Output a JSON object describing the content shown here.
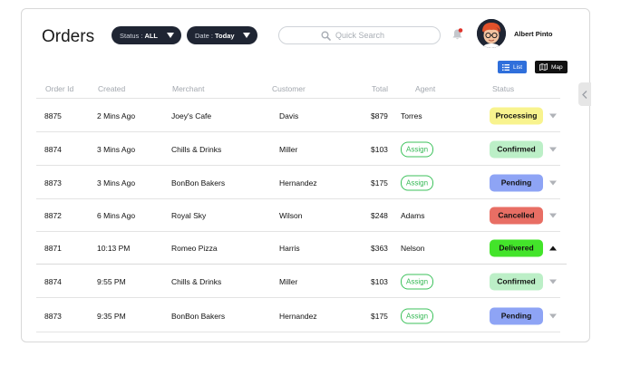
{
  "header": {
    "title": "Orders",
    "status_filter": {
      "label": "Status :",
      "value": "ALL"
    },
    "date_filter": {
      "label": "Date :",
      "value": "Today"
    },
    "search": {
      "placeholder": "Quick Search",
      "value": ""
    },
    "user": {
      "name": "Albert Pinto"
    }
  },
  "view_toggle": {
    "list_label": "List",
    "map_label": "Map",
    "active": "List"
  },
  "table": {
    "columns": [
      "Order Id",
      "Created",
      "Merchant",
      "Customer",
      "Total",
      "Agent",
      "Status"
    ],
    "rows": [
      {
        "order_id": "8875",
        "created": "2 Mins Ago",
        "merchant": "Joey's Cafe",
        "customer": "Davis",
        "total": "$879",
        "agent": "Torres",
        "status": "Processing",
        "status_color": "#f8f38e"
      },
      {
        "order_id": "8874",
        "created": "3 Mins Ago",
        "merchant": "Chills & Drinks",
        "customer": "Miller",
        "total": "$103",
        "agent": "Assign",
        "status": "Confirmed",
        "status_color": "#bcefc7"
      },
      {
        "order_id": "8873",
        "created": "3 Mins Ago",
        "merchant": "BonBon Bakers",
        "customer": "Hernandez",
        "total": "$175",
        "agent": "Assign",
        "status": "Pending",
        "status_color": "#8ea4f5"
      },
      {
        "order_id": "8872",
        "created": "6 Mins Ago",
        "merchant": "Royal Sky",
        "customer": "Wilson",
        "total": "$248",
        "agent": "Adams",
        "status": "Cancelled",
        "status_color": "#e86e64"
      },
      {
        "order_id": "8871",
        "created": "10:13 PM",
        "merchant": "Romeo Pizza",
        "customer": "Harris",
        "total": "$363",
        "agent": "Nelson",
        "status": "Delivered",
        "status_color": "#43e42a"
      },
      {
        "order_id": "8874",
        "created": "9:55 PM",
        "merchant": "Chills & Drinks",
        "customer": "Miller",
        "total": "$103",
        "agent": "Assign",
        "status": "Confirmed",
        "status_color": "#bcefc7"
      },
      {
        "order_id": "8873",
        "created": "9:35 PM",
        "merchant": "BonBon Bakers",
        "customer": "Hernandez",
        "total": "$175",
        "agent": "Assign",
        "status": "Pending",
        "status_color": "#8ea4f5"
      }
    ]
  }
}
